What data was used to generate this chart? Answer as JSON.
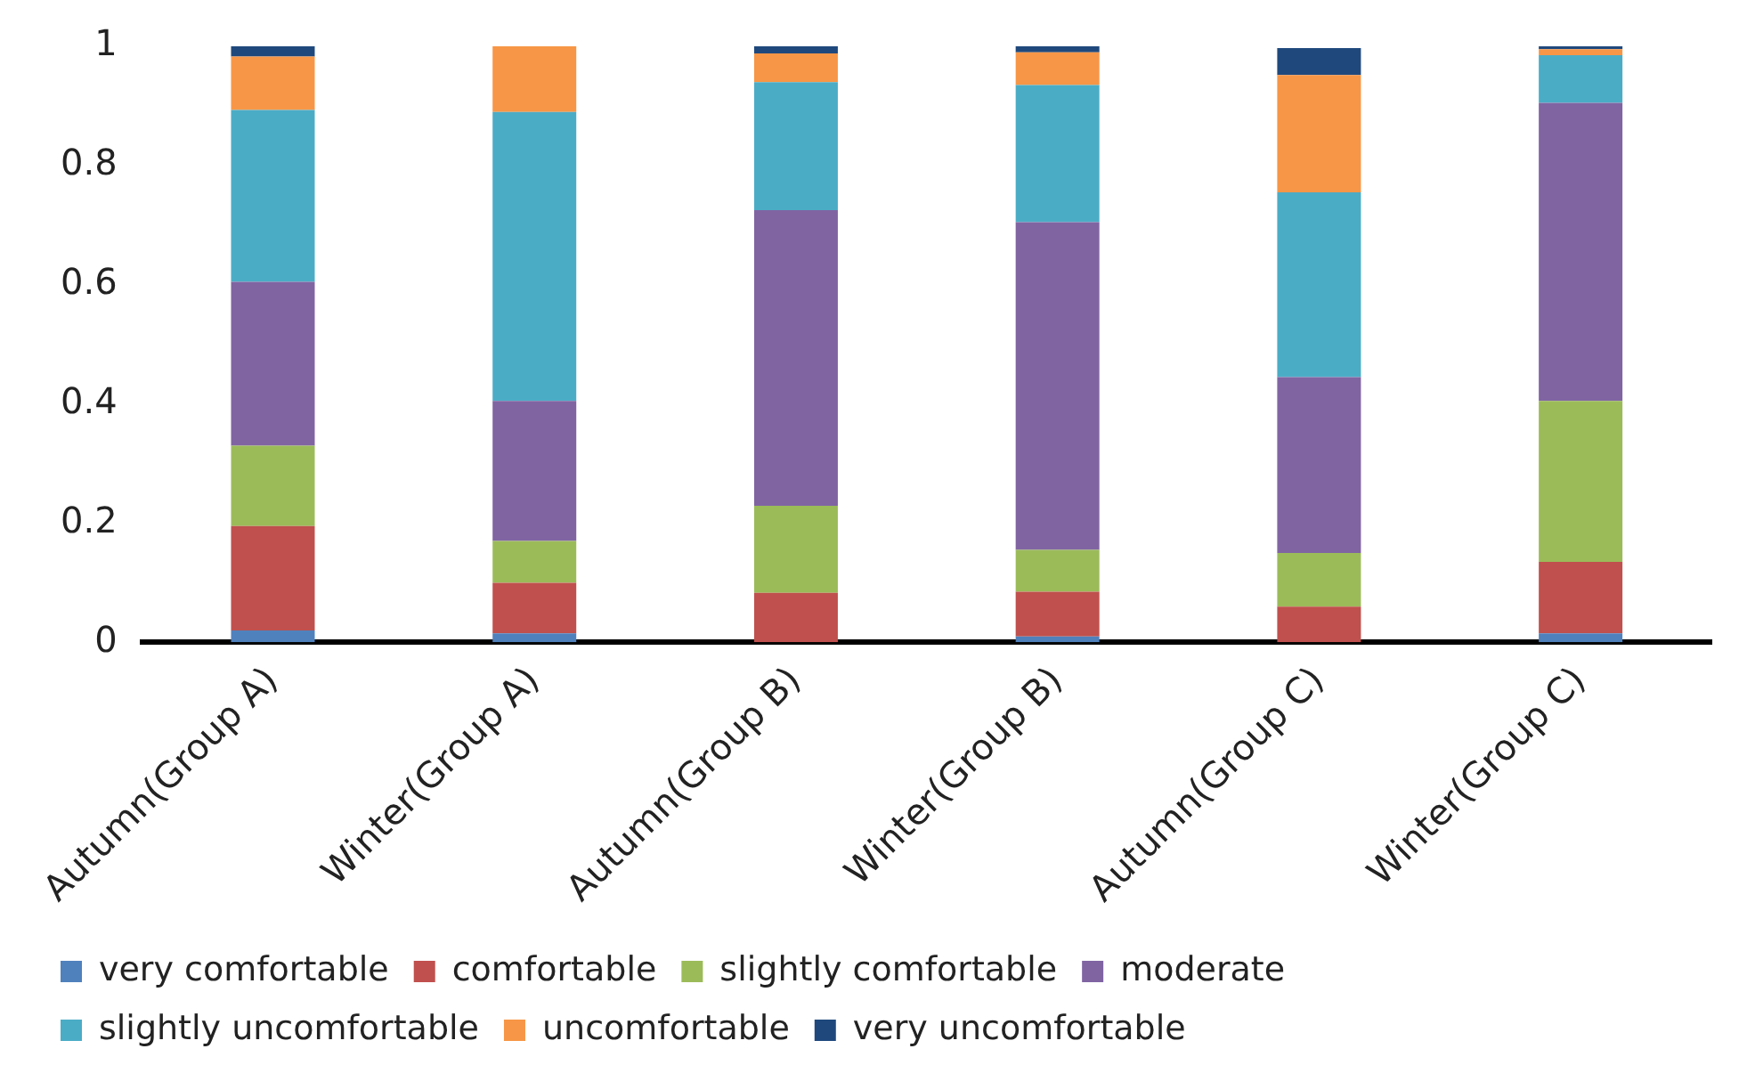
{
  "chart_data": {
    "type": "bar",
    "stacked": true,
    "categories": [
      "Autumn(Group A)",
      "Winter(Group A)",
      "Autumn(Group B)",
      "Winter(Group B)",
      "Autumn(Group C)",
      "Winter(Group C)"
    ],
    "series": [
      {
        "name": "very comfortable",
        "color": "#4f81bd",
        "values": [
          0.02,
          0.015,
          0,
          0.01,
          0,
          0.015
        ]
      },
      {
        "name": "comfortable",
        "color": "#c0504d",
        "values": [
          0.175,
          0.085,
          0.083,
          0.075,
          0.06,
          0.12
        ]
      },
      {
        "name": "slightly comfortable",
        "color": "#9bbb59",
        "values": [
          0.135,
          0.07,
          0.146,
          0.07,
          0.09,
          0.27
        ]
      },
      {
        "name": "moderate",
        "color": "#8064a2",
        "values": [
          0.275,
          0.235,
          0.496,
          0.55,
          0.295,
          0.5
        ]
      },
      {
        "name": "slightly uncomfortable",
        "color": "#4bacc6",
        "values": [
          0.288,
          0.485,
          0.215,
          0.23,
          0.31,
          0.08
        ]
      },
      {
        "name": "uncomfortable",
        "color": "#f79646",
        "values": [
          0.09,
          0.11,
          0.048,
          0.055,
          0.197,
          0.01
        ]
      },
      {
        "name": "very uncomfortable",
        "color": "#1f497d",
        "values": [
          0.017,
          0,
          0.012,
          0.01,
          0.045,
          0.005
        ]
      }
    ],
    "ylim": [
      0,
      1
    ],
    "yticks": [
      0,
      0.2,
      0.4,
      0.6,
      0.8,
      1
    ],
    "grid": false,
    "legend": "bottom"
  }
}
